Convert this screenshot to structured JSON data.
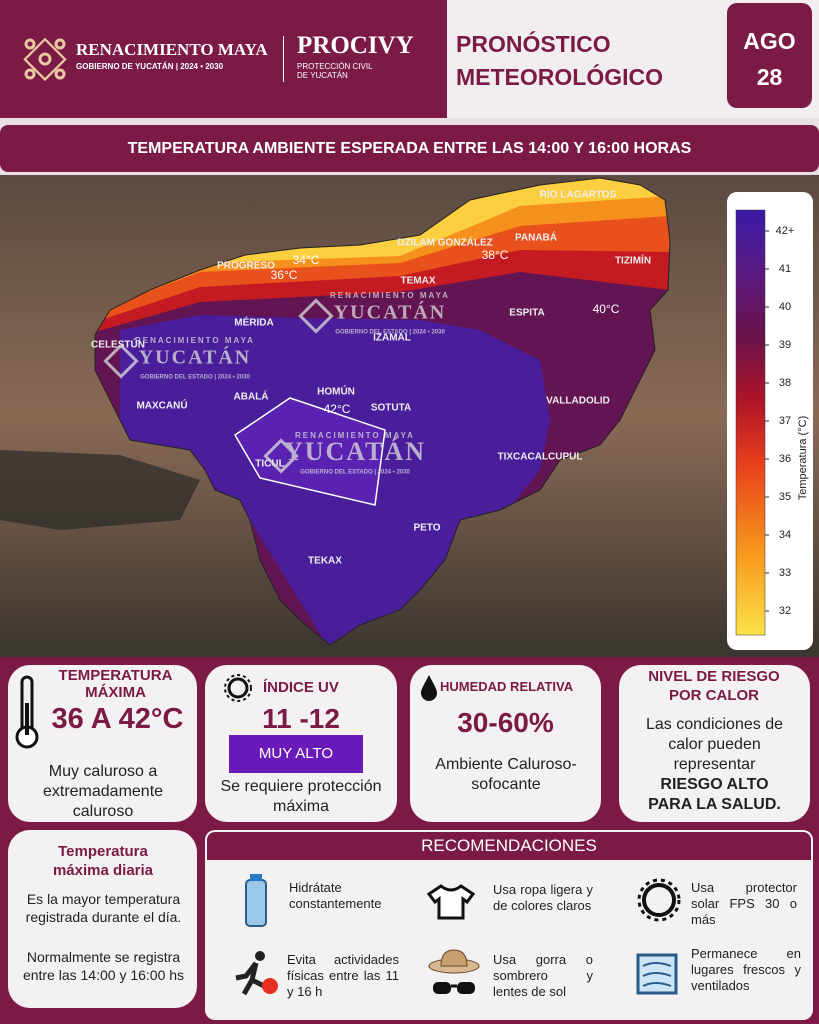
{
  "header": {
    "brand": "RENACIMIENTO MAYA",
    "brand_sub": "GOBIERNO DE YUCATÁN",
    "brand_years": "2024 • 2030",
    "agency": "PROCIVY",
    "agency_sub_1": "PROTECCIÓN CIVIL",
    "agency_sub_2": "DE YUCATÁN",
    "title_1": "PRONÓSTICO",
    "title_2": "METEOROLÓGICO",
    "month": "AGO",
    "day": "28"
  },
  "banner": "TEMPERATURA AMBIENTE ESPERADA ENTRE LAS 14:00 Y 16:00 HORAS",
  "map": {
    "places": [
      "RÍO LAGARTOS",
      "DZILAM GONZÁLEZ",
      "PANABÁ",
      "TIZIMÍN",
      "PROGRESO",
      "TEMAX",
      "ESPITA",
      "MÉRIDA",
      "IZAMAL",
      "CELESTÚN",
      "HOMÚN",
      "ABALÁ",
      "MAXCANÚ",
      "SOTUTA",
      "VALLADOLID",
      "TICUL",
      "TIXCACALCUPUL",
      "PETO",
      "TEKAX"
    ],
    "isotherms": [
      "34°C",
      "36°C",
      "38°C",
      "40°C",
      "42°C"
    ],
    "watermark": {
      "top": "RENACIMIENTO MAYA",
      "main": "YUCATÁN",
      "bottom": "GOBIERNO DEL ESTADO | 2024 • 2030"
    }
  },
  "colorbar": {
    "ticks": [
      "42+",
      "41",
      "40",
      "39",
      "38",
      "37",
      "36",
      "35",
      "34",
      "33",
      "32"
    ],
    "label": "Temperatura (°C)"
  },
  "cards": {
    "temperature": {
      "title": "TEMPERATURA MÁXIMA",
      "value": "36 A 42°C",
      "text": "Muy caluroso a extremadamente caluroso"
    },
    "uv": {
      "title": "ÍNDICE UV",
      "value": "11 -12",
      "badge": "MUY ALTO",
      "text": "Se requiere protección máxima"
    },
    "humidity": {
      "title": "HUMEDAD RELATIVA",
      "value": "30-60%",
      "text": "Ambiente Caluroso-sofocante"
    },
    "risk": {
      "title": "NIVEL DE RIESGO POR CALOR",
      "text": "Las condiciones de calor pueden representar",
      "strong": "RIESGO ALTO PARA LA SALUD."
    },
    "daily": {
      "title": "Temperatura máxima diaria",
      "text_1": "Es la mayor temperatura registrada durante el día.",
      "text_2": "Normalmente se registra entre las 14:00 y 16:00 hs"
    }
  },
  "recommendations": {
    "title": "RECOMENDACIONES",
    "items": [
      "Hidrátate constantemente",
      "Usa ropa ligera y de colores claros",
      "Usa protector solar FPS 30 o más",
      "Evita actividades físicas entre las 11 y 16 h",
      "Usa gorra o sombrero y lentes de sol",
      "Permanece en lugares frescos y ventilados"
    ]
  }
}
